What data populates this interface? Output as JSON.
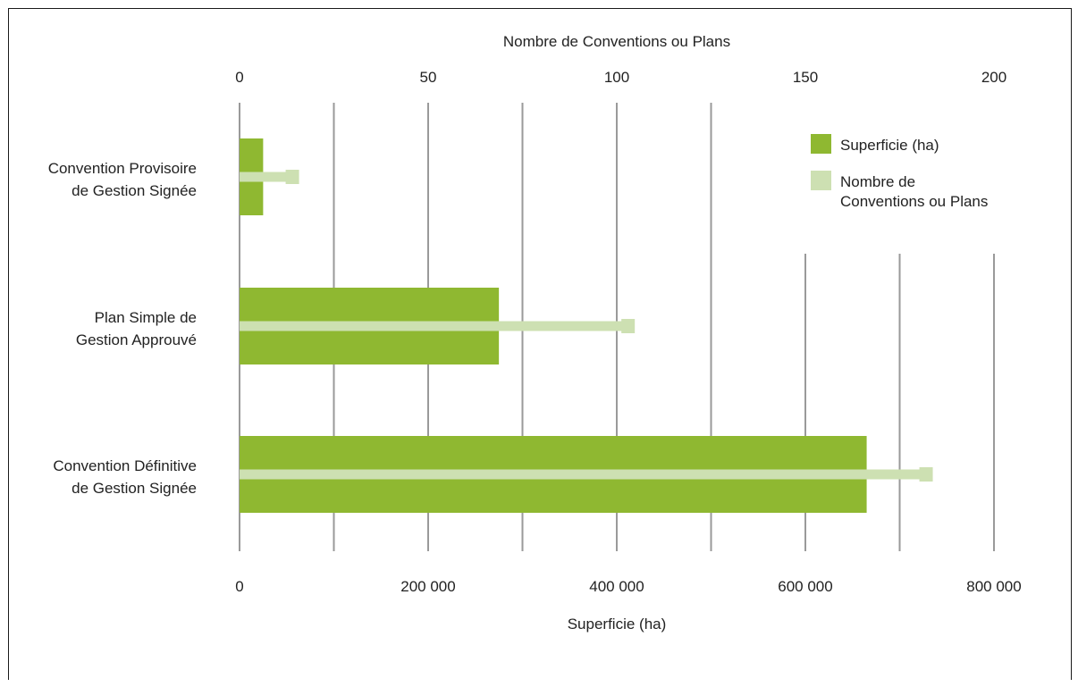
{
  "chart_data": {
    "type": "bar",
    "categories": [
      [
        "Convention Provisoire",
        "de Gestion Signée"
      ],
      [
        "Plan Simple de",
        "Gestion Approuvé"
      ],
      [
        "Convention Définitive",
        "de Gestion Signée"
      ]
    ],
    "series": [
      {
        "name": "Superficie (ha)",
        "axis": "bottom",
        "color": "#8fb831",
        "values": [
          25000,
          275000,
          665000
        ]
      },
      {
        "name": "Nombre de Conventions ou Plans",
        "axis": "top",
        "color": "#cde0b2",
        "values": [
          14,
          103,
          182
        ]
      }
    ],
    "bottom_axis": {
      "label": "Superficie (ha)",
      "range": [
        0,
        800000
      ],
      "ticks": [
        0,
        200000,
        400000,
        600000,
        800000
      ],
      "tick_labels": [
        "0",
        "200 000",
        "400 000",
        "600 000",
        "800 000"
      ]
    },
    "top_axis": {
      "label": "Nombre de Conventions ou Plans",
      "range": [
        0,
        200
      ],
      "ticks": [
        0,
        50,
        100,
        150,
        200
      ],
      "tick_labels": [
        "0",
        "50",
        "100",
        "150",
        "200"
      ]
    },
    "legend": {
      "position": "top-right",
      "items": [
        {
          "lines": [
            "Superficie (ha)"
          ],
          "color": "#8fb831"
        },
        {
          "lines": [
            "Nombre de",
            "Conventions ou Plans"
          ],
          "color": "#cde0b2"
        }
      ]
    },
    "grid": true
  }
}
